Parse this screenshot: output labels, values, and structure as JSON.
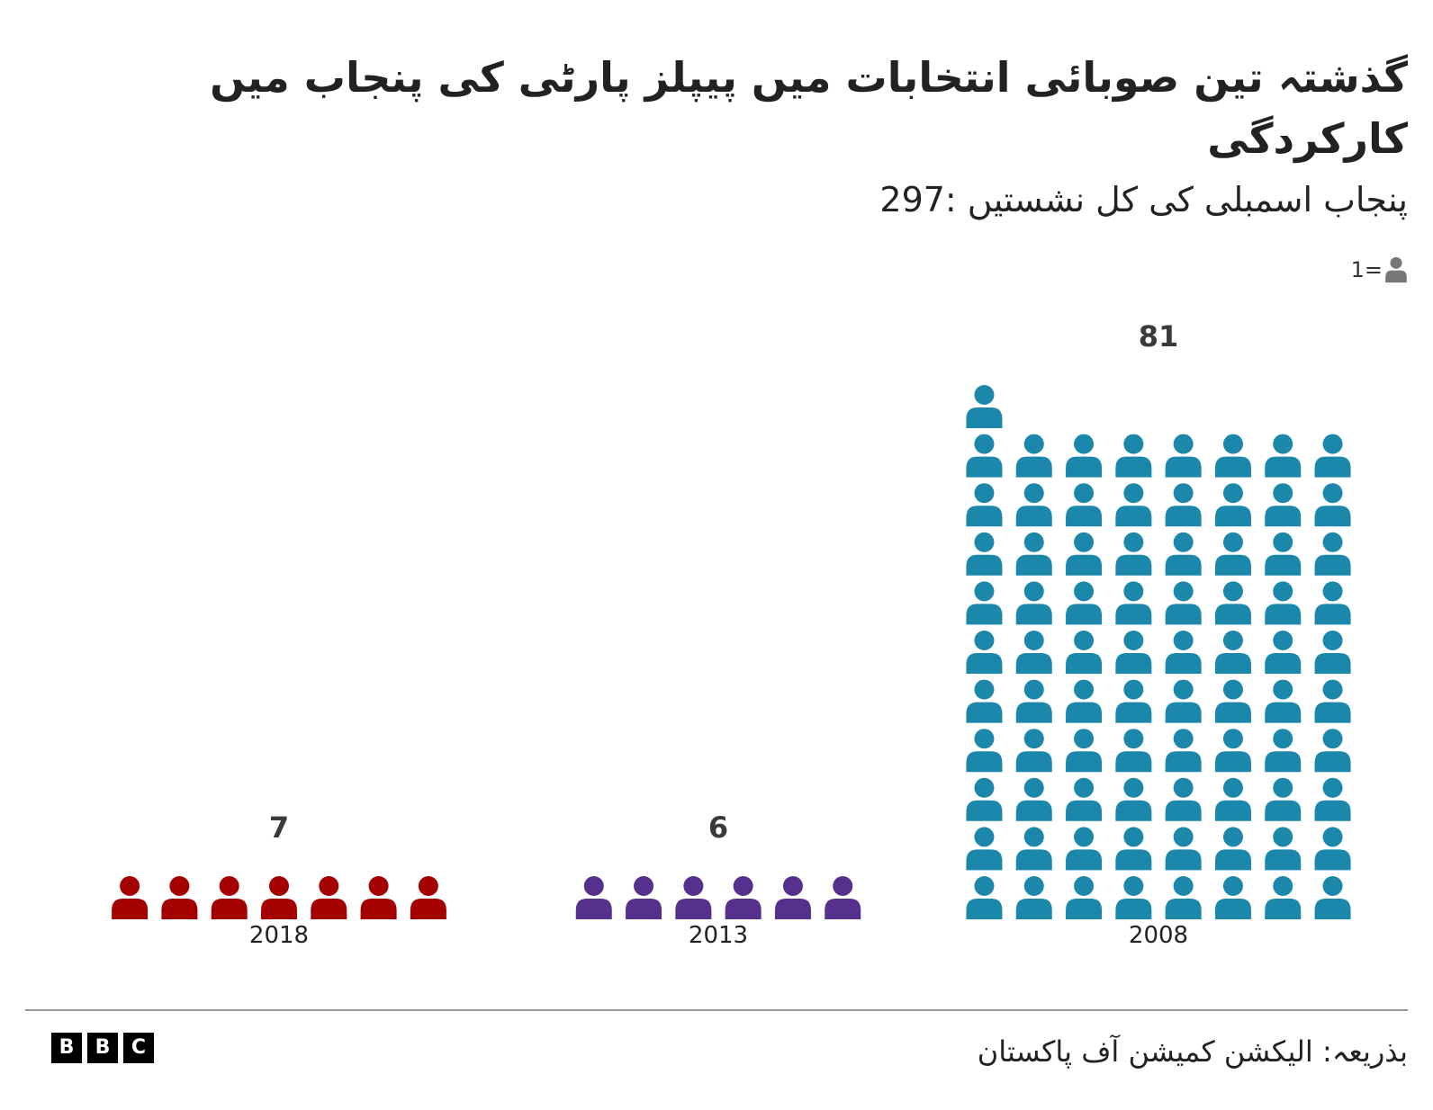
{
  "title": "گذشتہ تین صوبائی انتخابات میں پیپلز پارٹی کی پنجاب میں کارکردگی",
  "subtitle": "پنجاب اسمبلی کی کل نشستیں :297",
  "key": {
    "icon": "person-icon",
    "label": "1=",
    "color": "#777777"
  },
  "chart_data": {
    "type": "pictogram",
    "unit": "1 seat per icon",
    "icon": "person-icon",
    "categories": [
      "2018",
      "2013",
      "2008"
    ],
    "values": [
      7,
      6,
      81
    ],
    "colors": [
      "#a50000",
      "#55308d",
      "#1a87ab"
    ],
    "value_labels": [
      "7",
      "6",
      "81"
    ]
  },
  "footer": {
    "logo_letters": [
      "B",
      "B",
      "C"
    ],
    "source": "بذریعہ: الیکشن کمیشن آف پاکستان"
  }
}
